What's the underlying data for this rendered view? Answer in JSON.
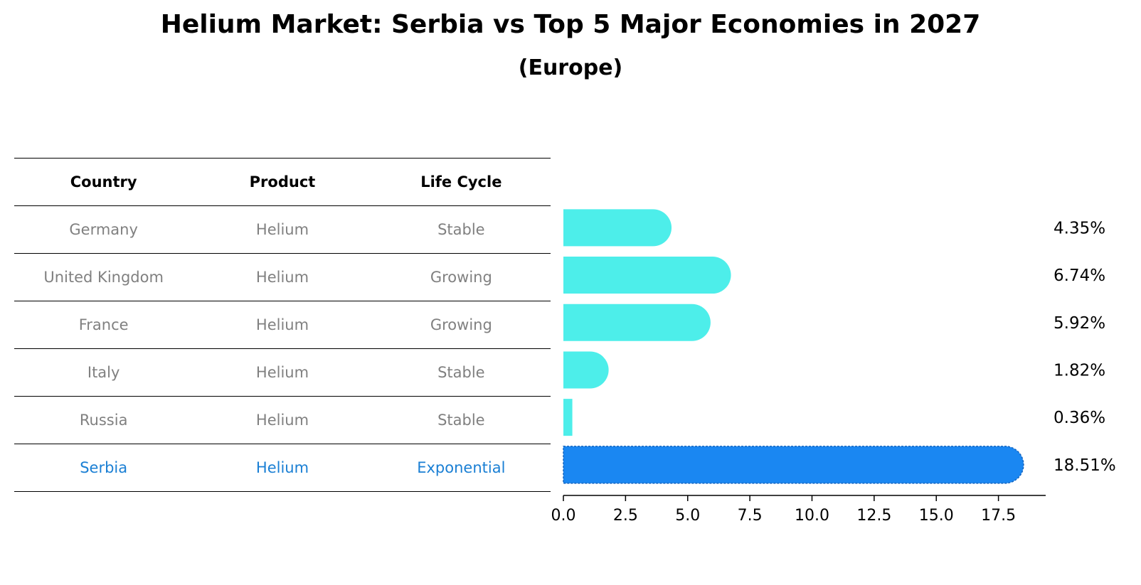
{
  "title": "Helium Market: Serbia vs Top 5 Major Economies in 2027",
  "subtitle": "(Europe)",
  "table": {
    "headers": [
      "Country",
      "Product",
      "Life Cycle"
    ],
    "rows": [
      [
        "Germany",
        "Helium",
        "Stable"
      ],
      [
        "United Kingdom",
        "Helium",
        "Growing"
      ],
      [
        "France",
        "Helium",
        "Growing"
      ],
      [
        "Italy",
        "Helium",
        "Stable"
      ],
      [
        "Russia",
        "Helium",
        "Stable"
      ],
      [
        "Serbia",
        "Helium",
        "Exponential"
      ]
    ]
  },
  "colors": {
    "bar": "#4deeea",
    "highlight": "#1a87f2",
    "highlight_text": "#1a7fd4"
  },
  "chart_data": {
    "type": "bar",
    "orientation": "horizontal",
    "categories": [
      "Germany",
      "United Kingdom",
      "France",
      "Italy",
      "Russia",
      "Serbia"
    ],
    "values": [
      4.35,
      6.74,
      5.92,
      1.82,
      0.36,
      18.51
    ],
    "value_labels": [
      "4.35%",
      "6.74%",
      "5.92%",
      "1.82%",
      "0.36%",
      "18.51%"
    ],
    "highlight": "Serbia",
    "xlim": [
      0,
      19.4
    ],
    "xticks": [
      0.0,
      2.5,
      5.0,
      7.5,
      10.0,
      12.5,
      15.0,
      17.5
    ],
    "xtick_labels": [
      "0.0",
      "2.5",
      "5.0",
      "7.5",
      "10.0",
      "12.5",
      "15.0",
      "17.5"
    ],
    "title": "Helium Market: Serbia vs Top 5 Major Economies in 2027",
    "xlabel": "",
    "ylabel": ""
  }
}
